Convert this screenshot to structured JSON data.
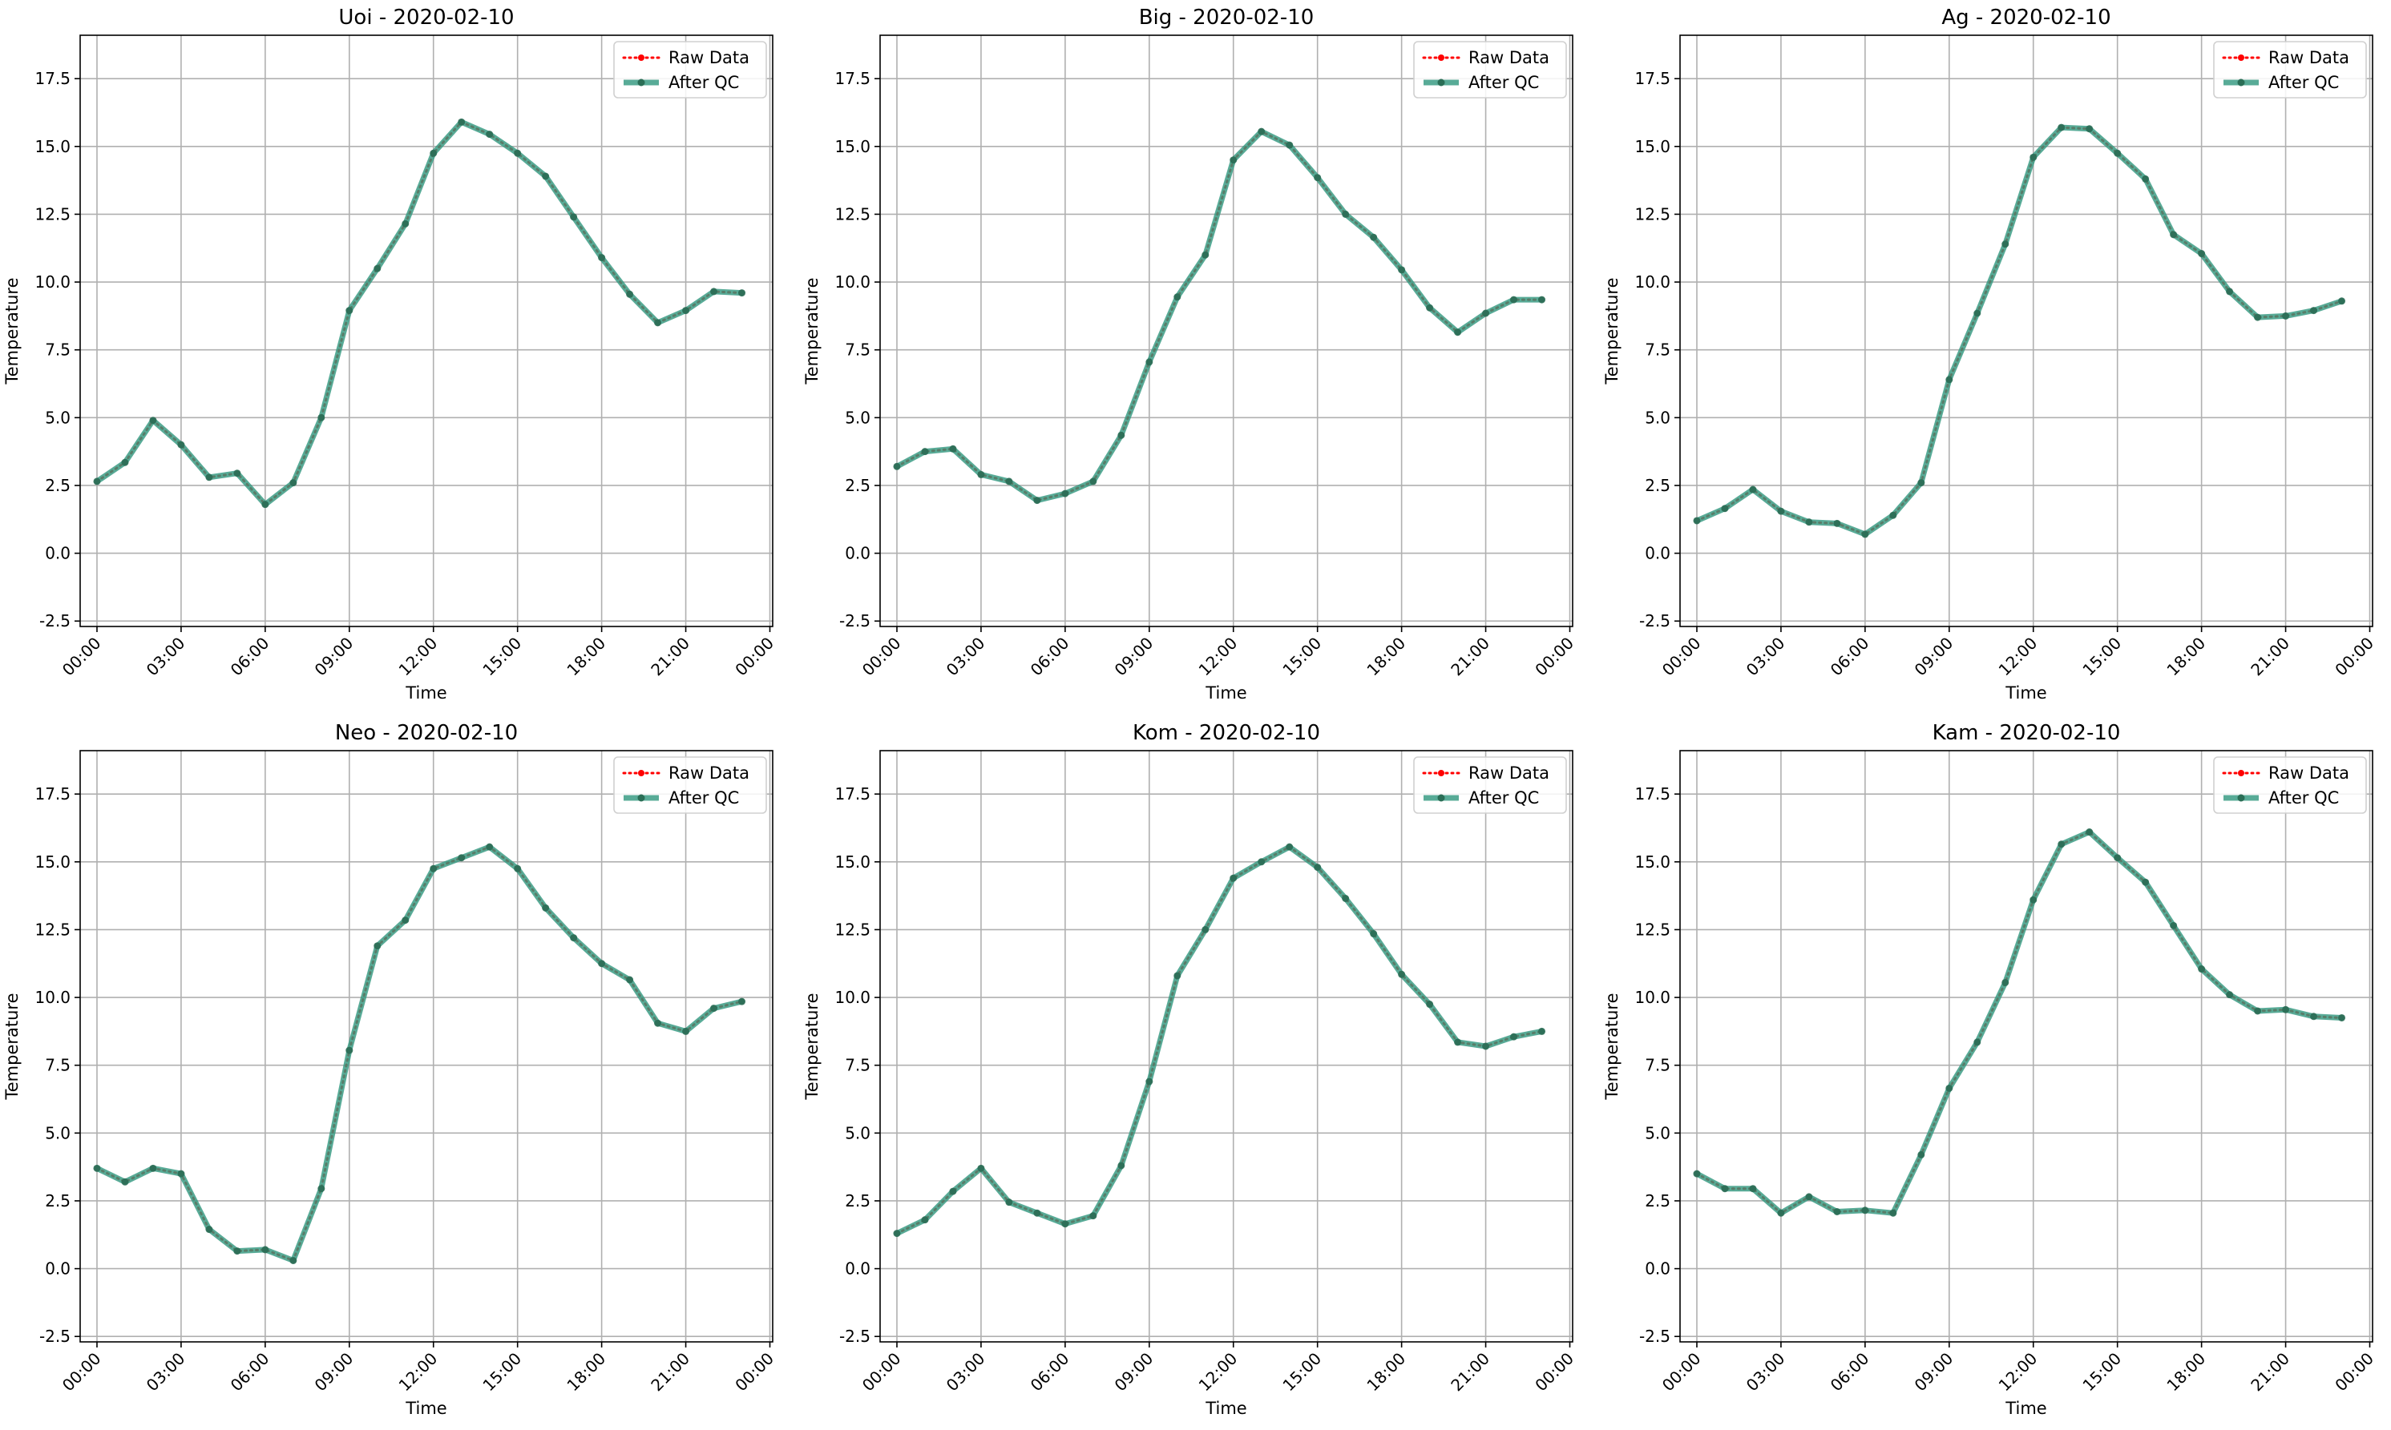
{
  "chart_data": [
    {
      "type": "line",
      "title": "Uoi - 2020-02-10",
      "xlabel": "Time",
      "ylabel": "Temperature",
      "x_tick_labels": [
        "00:00",
        "03:00",
        "06:00",
        "09:00",
        "12:00",
        "15:00",
        "18:00",
        "21:00",
        "00:00"
      ],
      "y_tick_labels": [
        "-2.5",
        "0.0",
        "2.5",
        "5.0",
        "7.5",
        "10.0",
        "12.5",
        "15.0",
        "17.5"
      ],
      "xlim_hours": [
        -0.6,
        24.1
      ],
      "ylim": [
        -2.7,
        19.1
      ],
      "grid": true,
      "legend_position": "top-right",
      "series": [
        {
          "name": "Raw Data",
          "color": "#ff0000",
          "style": "dotted",
          "marker": "dot",
          "values": [
            2.65,
            3.35,
            4.9,
            4.0,
            2.8,
            2.95,
            1.8,
            2.6,
            5.0,
            8.95,
            10.5,
            12.15,
            14.75,
            15.9,
            15.45,
            14.75,
            13.9,
            12.4,
            10.9,
            9.55,
            8.5,
            8.95,
            9.65,
            9.6
          ]
        },
        {
          "name": "After QC",
          "color": "#339980",
          "style": "solid",
          "marker": "dot",
          "values": [
            2.65,
            3.35,
            4.9,
            4.0,
            2.8,
            2.95,
            1.8,
            2.6,
            5.0,
            8.95,
            10.5,
            12.15,
            14.75,
            15.9,
            15.45,
            14.75,
            13.9,
            12.4,
            10.9,
            9.55,
            8.5,
            8.95,
            9.65,
            9.6
          ]
        }
      ]
    },
    {
      "type": "line",
      "title": "Big - 2020-02-10",
      "xlabel": "Time",
      "ylabel": "Temperature",
      "x_tick_labels": [
        "00:00",
        "03:00",
        "06:00",
        "09:00",
        "12:00",
        "15:00",
        "18:00",
        "21:00",
        "00:00"
      ],
      "y_tick_labels": [
        "-2.5",
        "0.0",
        "2.5",
        "5.0",
        "7.5",
        "10.0",
        "12.5",
        "15.0",
        "17.5"
      ],
      "xlim_hours": [
        -0.6,
        24.1
      ],
      "ylim": [
        -2.7,
        19.1
      ],
      "grid": true,
      "legend_position": "top-right",
      "series": [
        {
          "name": "Raw Data",
          "color": "#ff0000",
          "style": "dotted",
          "marker": "dot",
          "values": [
            3.2,
            3.75,
            3.85,
            2.9,
            2.65,
            1.95,
            2.2,
            2.65,
            4.35,
            7.05,
            9.45,
            11.0,
            14.5,
            15.55,
            15.05,
            13.85,
            12.5,
            11.65,
            10.45,
            9.05,
            8.15,
            8.85,
            9.35,
            9.35
          ]
        },
        {
          "name": "After QC",
          "color": "#339980",
          "style": "solid",
          "marker": "dot",
          "values": [
            3.2,
            3.75,
            3.85,
            2.9,
            2.65,
            1.95,
            2.2,
            2.65,
            4.35,
            7.05,
            9.45,
            11.0,
            14.5,
            15.55,
            15.05,
            13.85,
            12.5,
            11.65,
            10.45,
            9.05,
            8.15,
            8.85,
            9.35,
            9.35
          ]
        }
      ]
    },
    {
      "type": "line",
      "title": "Ag - 2020-02-10",
      "xlabel": "Time",
      "ylabel": "Temperature",
      "x_tick_labels": [
        "00:00",
        "03:00",
        "06:00",
        "09:00",
        "12:00",
        "15:00",
        "18:00",
        "21:00",
        "00:00"
      ],
      "y_tick_labels": [
        "-2.5",
        "0.0",
        "2.5",
        "5.0",
        "7.5",
        "10.0",
        "12.5",
        "15.0",
        "17.5"
      ],
      "xlim_hours": [
        -0.6,
        24.1
      ],
      "ylim": [
        -2.7,
        19.1
      ],
      "grid": true,
      "legend_position": "top-right",
      "series": [
        {
          "name": "Raw Data",
          "color": "#ff0000",
          "style": "dotted",
          "marker": "dot",
          "values": [
            1.2,
            1.65,
            2.35,
            1.55,
            1.15,
            1.1,
            0.7,
            1.4,
            2.6,
            6.4,
            8.85,
            11.4,
            14.6,
            15.7,
            15.65,
            14.75,
            13.8,
            11.75,
            11.05,
            9.65,
            8.7,
            8.75,
            8.95,
            9.3
          ]
        },
        {
          "name": "After QC",
          "color": "#339980",
          "style": "solid",
          "marker": "dot",
          "values": [
            1.2,
            1.65,
            2.35,
            1.55,
            1.15,
            1.1,
            0.7,
            1.4,
            2.6,
            6.4,
            8.85,
            11.4,
            14.6,
            15.7,
            15.65,
            14.75,
            13.8,
            11.75,
            11.05,
            9.65,
            8.7,
            8.75,
            8.95,
            9.3
          ]
        }
      ]
    },
    {
      "type": "line",
      "title": "Neo - 2020-02-10",
      "xlabel": "Time",
      "ylabel": "Temperature",
      "x_tick_labels": [
        "00:00",
        "03:00",
        "06:00",
        "09:00",
        "12:00",
        "15:00",
        "18:00",
        "21:00",
        "00:00"
      ],
      "y_tick_labels": [
        "-2.5",
        "0.0",
        "2.5",
        "5.0",
        "7.5",
        "10.0",
        "12.5",
        "15.0",
        "17.5"
      ],
      "xlim_hours": [
        -0.6,
        24.1
      ],
      "ylim": [
        -2.7,
        19.1
      ],
      "grid": true,
      "legend_position": "top-right",
      "series": [
        {
          "name": "Raw Data",
          "color": "#ff0000",
          "style": "dotted",
          "marker": "dot",
          "values": [
            3.7,
            3.2,
            3.7,
            3.5,
            1.45,
            0.65,
            0.7,
            0.3,
            2.95,
            8.05,
            11.9,
            12.85,
            14.75,
            15.15,
            15.55,
            14.75,
            13.3,
            12.2,
            11.25,
            10.65,
            9.05,
            8.75,
            9.6,
            9.85
          ]
        },
        {
          "name": "After QC",
          "color": "#339980",
          "style": "solid",
          "marker": "dot",
          "values": [
            3.7,
            3.2,
            3.7,
            3.5,
            1.45,
            0.65,
            0.7,
            0.3,
            2.95,
            8.05,
            11.9,
            12.85,
            14.75,
            15.15,
            15.55,
            14.75,
            13.3,
            12.2,
            11.25,
            10.65,
            9.05,
            8.75,
            9.6,
            9.85
          ]
        }
      ]
    },
    {
      "type": "line",
      "title": "Kom - 2020-02-10",
      "xlabel": "Time",
      "ylabel": "Temperature",
      "x_tick_labels": [
        "00:00",
        "03:00",
        "06:00",
        "09:00",
        "12:00",
        "15:00",
        "18:00",
        "21:00",
        "00:00"
      ],
      "y_tick_labels": [
        "-2.5",
        "0.0",
        "2.5",
        "5.0",
        "7.5",
        "10.0",
        "12.5",
        "15.0",
        "17.5"
      ],
      "xlim_hours": [
        -0.6,
        24.1
      ],
      "ylim": [
        -2.7,
        19.1
      ],
      "grid": true,
      "legend_position": "top-right",
      "series": [
        {
          "name": "Raw Data",
          "color": "#ff0000",
          "style": "dotted",
          "marker": "dot",
          "values": [
            1.3,
            1.8,
            2.85,
            3.7,
            2.45,
            2.05,
            1.65,
            1.95,
            3.8,
            6.9,
            10.8,
            12.5,
            14.4,
            15.0,
            15.55,
            14.8,
            13.65,
            12.35,
            10.85,
            9.75,
            8.35,
            8.2,
            8.55,
            8.75
          ]
        },
        {
          "name": "After QC",
          "color": "#339980",
          "style": "solid",
          "marker": "dot",
          "values": [
            1.3,
            1.8,
            2.85,
            3.7,
            2.45,
            2.05,
            1.65,
            1.95,
            3.8,
            6.9,
            10.8,
            12.5,
            14.4,
            15.0,
            15.55,
            14.8,
            13.65,
            12.35,
            10.85,
            9.75,
            8.35,
            8.2,
            8.55,
            8.75
          ]
        }
      ]
    },
    {
      "type": "line",
      "title": "Kam - 2020-02-10",
      "xlabel": "Time",
      "ylabel": "Temperature",
      "x_tick_labels": [
        "00:00",
        "03:00",
        "06:00",
        "09:00",
        "12:00",
        "15:00",
        "18:00",
        "21:00",
        "00:00"
      ],
      "y_tick_labels": [
        "-2.5",
        "0.0",
        "2.5",
        "5.0",
        "7.5",
        "10.0",
        "12.5",
        "15.0",
        "17.5"
      ],
      "xlim_hours": [
        -0.6,
        24.1
      ],
      "ylim": [
        -2.7,
        19.1
      ],
      "grid": true,
      "legend_position": "top-right",
      "series": [
        {
          "name": "Raw Data",
          "color": "#ff0000",
          "style": "dotted",
          "marker": "dot",
          "values": [
            3.5,
            2.95,
            2.95,
            2.05,
            2.65,
            2.1,
            2.15,
            2.05,
            4.2,
            6.65,
            8.35,
            10.55,
            13.6,
            15.65,
            16.1,
            15.15,
            14.25,
            12.65,
            11.05,
            10.1,
            9.5,
            9.55,
            9.3,
            9.25
          ]
        },
        {
          "name": "After QC",
          "color": "#339980",
          "style": "solid",
          "marker": "dot",
          "values": [
            3.5,
            2.95,
            2.95,
            2.05,
            2.65,
            2.1,
            2.15,
            2.05,
            4.2,
            6.65,
            8.35,
            10.55,
            13.6,
            15.65,
            16.1,
            15.15,
            14.25,
            12.65,
            11.05,
            10.1,
            9.5,
            9.55,
            9.3,
            9.25
          ]
        }
      ]
    }
  ]
}
